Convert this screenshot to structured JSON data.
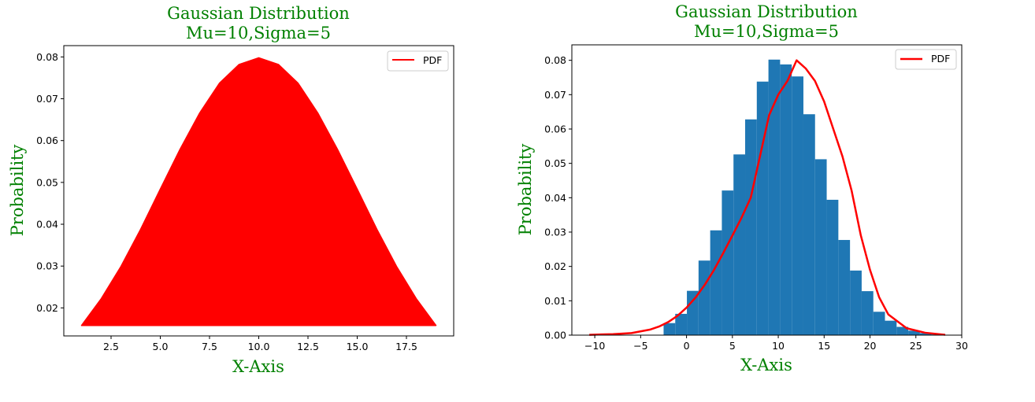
{
  "colors": {
    "pdf_line": "#ff0000",
    "histogram": "#1f77b4",
    "label_text": "#008000"
  },
  "chart_data": [
    {
      "type": "area",
      "title": "Gaussian Distribution\nMu=10,Sigma=5",
      "title_lines": [
        "Gaussian Distribution",
        "Mu=10,Sigma=5"
      ],
      "xlabel": "X-Axis",
      "ylabel": "Probability",
      "xlim": [
        0.1,
        19.9
      ],
      "ylim": [
        0.0133,
        0.0827
      ],
      "xticks": [
        2.5,
        5.0,
        7.5,
        10.0,
        12.5,
        15.0,
        17.5
      ],
      "xtick_labels": [
        "2.5",
        "5.0",
        "7.5",
        "10.0",
        "12.5",
        "15.0",
        "17.5"
      ],
      "yticks": [
        0.02,
        0.03,
        0.04,
        0.05,
        0.06,
        0.07,
        0.08
      ],
      "ytick_labels": [
        "0.02",
        "0.03",
        "0.04",
        "0.05",
        "0.06",
        "0.07",
        "0.08"
      ],
      "grid": false,
      "legend": {
        "position": "top-right",
        "entries": [
          "PDF"
        ]
      },
      "series": [
        {
          "name": "PDF",
          "color": "#ff0000",
          "x": [
            1,
            2,
            3,
            4,
            5,
            6,
            7,
            8,
            9,
            10,
            11,
            12,
            13,
            14,
            15,
            16,
            17,
            18,
            19
          ],
          "y": [
            0.0158,
            0.0222,
            0.0299,
            0.0388,
            0.0484,
            0.0579,
            0.0666,
            0.0737,
            0.0782,
            0.0798,
            0.0782,
            0.0737,
            0.0666,
            0.0579,
            0.0484,
            0.0388,
            0.0299,
            0.0222,
            0.0158
          ]
        }
      ]
    },
    {
      "type": "bar",
      "title": "Gaussian Distribution\nMu=10,Sigma=5",
      "title_lines": [
        "Gaussian Distribution",
        "Mu=10,Sigma=5"
      ],
      "xlabel": "X-Axis",
      "ylabel": "Probability",
      "xlim": [
        -12.5,
        30
      ],
      "ylim": [
        0,
        0.0845
      ],
      "xticks": [
        -10,
        -5,
        0,
        5,
        10,
        15,
        20,
        25,
        30
      ],
      "xtick_labels": [
        "−10",
        "−5",
        "0",
        "5",
        "10",
        "15",
        "20",
        "25",
        "30"
      ],
      "yticks": [
        0.0,
        0.01,
        0.02,
        0.03,
        0.04,
        0.05,
        0.06,
        0.07,
        0.08
      ],
      "ytick_labels": [
        "0.00",
        "0.01",
        "0.02",
        "0.03",
        "0.04",
        "0.05",
        "0.06",
        "0.07",
        "0.08"
      ],
      "grid": false,
      "legend": {
        "position": "top-right",
        "entries": [
          "PDF"
        ]
      },
      "histogram": {
        "color": "#1f77b4",
        "bin_width": 1.27,
        "bin_starts": [
          -2.5,
          -1.23,
          0.04,
          1.31,
          2.58,
          3.85,
          5.12,
          6.39,
          7.66,
          8.93,
          10.2,
          11.47,
          12.74,
          14.01,
          15.28,
          16.55,
          17.82,
          19.09,
          20.36,
          21.63,
          22.9,
          24.17,
          25.44,
          26.71
        ],
        "values": [
          0.0035,
          0.0062,
          0.0129,
          0.0217,
          0.0305,
          0.0421,
          0.0526,
          0.0628,
          0.0738,
          0.0802,
          0.0788,
          0.0753,
          0.0643,
          0.0512,
          0.0394,
          0.0277,
          0.0188,
          0.0128,
          0.0068,
          0.0042,
          0.0024,
          0.0013,
          0.0006,
          0.0002
        ]
      },
      "series": [
        {
          "name": "PDF",
          "color": "#ff0000",
          "x": [
            -10.6,
            -8,
            -6,
            -4,
            -3,
            -2,
            -1,
            0,
            1,
            2,
            3,
            4,
            5,
            6,
            7,
            8,
            9,
            10,
            11,
            12,
            13,
            14,
            15,
            16,
            17,
            18,
            19,
            20,
            21,
            22,
            24,
            26,
            28.2
          ],
          "y": [
            0.0001,
            0.0003,
            0.0006,
            0.0016,
            0.0025,
            0.0038,
            0.0056,
            0.008,
            0.011,
            0.0147,
            0.019,
            0.0239,
            0.029,
            0.0342,
            0.04,
            0.052,
            0.064,
            0.07,
            0.074,
            0.08,
            0.0776,
            0.074,
            0.068,
            0.06,
            0.052,
            0.042,
            0.029,
            0.019,
            0.011,
            0.006,
            0.002,
            0.0007,
            0.0001
          ]
        }
      ]
    }
  ]
}
